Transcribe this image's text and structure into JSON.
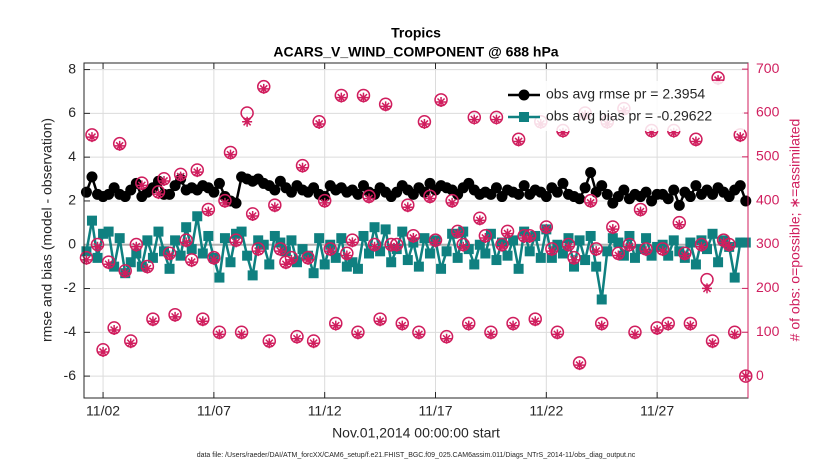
{
  "chart_data": {
    "type": "line",
    "title": "Tropics",
    "subtitle": "ACARS_V_WIND_COMPONENT @ 688 hPa",
    "xlabel": "Nov.01,2014 00:00:00 start",
    "ylabel": "rmse and bias (model - observation)",
    "y2label": "# of obs: o=possible; ∗=assimilated",
    "footnote": "data file: /Users/raeder/DAI/ATM_forcXX/CAM6_setup/f.e21.FHIST_BGC.f09_025.CAM6assim.011/Diags_NTrS_2014-11/obs_diag_output.nc",
    "legend": "upper right",
    "grid": true,
    "xlim": [
      1.14,
      31.1
    ],
    "xticks": [
      {
        "value": 2,
        "label": "11/02"
      },
      {
        "value": 7,
        "label": "11/07"
      },
      {
        "value": 12,
        "label": "11/12"
      },
      {
        "value": 17,
        "label": "11/17"
      },
      {
        "value": 22,
        "label": "11/22"
      },
      {
        "value": 27,
        "label": "11/27"
      }
    ],
    "ylim": [
      -7,
      8.3
    ],
    "yticks": [
      -6,
      -4,
      -2,
      0,
      2,
      4,
      6,
      8
    ],
    "y2lim": [
      -50,
      714
    ],
    "y2ticks": [
      0,
      100,
      200,
      300,
      400,
      500,
      600,
      700
    ],
    "x": [
      1.25,
      1.5,
      1.75,
      2,
      2.25,
      2.5,
      2.75,
      3,
      3.25,
      3.5,
      3.75,
      4,
      4.25,
      4.5,
      4.75,
      5,
      5.25,
      5.5,
      5.75,
      6,
      6.25,
      6.5,
      6.75,
      7,
      7.25,
      7.5,
      7.75,
      8,
      8.25,
      8.5,
      8.75,
      9,
      9.25,
      9.5,
      9.75,
      10,
      10.25,
      10.5,
      10.75,
      11,
      11.25,
      11.5,
      11.75,
      12,
      12.25,
      12.5,
      12.75,
      13,
      13.25,
      13.5,
      13.75,
      14,
      14.25,
      14.5,
      14.75,
      15,
      15.25,
      15.5,
      15.75,
      16,
      16.25,
      16.5,
      16.75,
      17,
      17.25,
      17.5,
      17.75,
      18,
      18.25,
      18.5,
      18.75,
      19,
      19.25,
      19.5,
      19.75,
      20,
      20.25,
      20.5,
      20.75,
      21,
      21.25,
      21.5,
      21.75,
      22,
      22.25,
      22.5,
      22.75,
      23,
      23.25,
      23.5,
      23.75,
      24,
      24.25,
      24.5,
      24.75,
      25,
      25.25,
      25.5,
      25.75,
      26,
      26.25,
      26.5,
      26.75,
      27,
      27.25,
      27.5,
      27.75,
      28,
      28.25,
      28.5,
      28.75,
      29,
      29.25,
      29.5,
      29.75,
      30,
      30.25,
      30.5,
      30.75,
      31
    ],
    "series": [
      {
        "name": "obs avg rmse pr = 2.3954",
        "color": "#000000",
        "marker": "circle",
        "line": true,
        "values": [
          2.4,
          3.1,
          2.3,
          2.2,
          2.3,
          2.6,
          2.3,
          2.2,
          2.5,
          2.8,
          2.2,
          2.4,
          2.6,
          2.9,
          2.3,
          2.3,
          2.7,
          3.0,
          2.5,
          2.6,
          2.5,
          2.7,
          2.6,
          2.4,
          2.8,
          2.2,
          2.0,
          1.9,
          3.1,
          3.0,
          2.9,
          3.0,
          2.8,
          2.7,
          2.5,
          2.9,
          2.6,
          2.4,
          2.7,
          2.5,
          2.4,
          2.6,
          2.3,
          2.2,
          2.7,
          2.5,
          2.6,
          2.4,
          2.5,
          2.3,
          2.7,
          2.4,
          2.3,
          2.6,
          2.4,
          2.2,
          2.4,
          2.7,
          2.5,
          2.3,
          2.6,
          2.4,
          2.8,
          2.5,
          2.7,
          2.6,
          2.5,
          2.3,
          2.6,
          2.8,
          2.5,
          2.3,
          2.4,
          2.3,
          2.6,
          2.2,
          2.5,
          2.4,
          2.3,
          2.7,
          2.3,
          2.5,
          2.4,
          2.2,
          2.6,
          2.4,
          2.8,
          2.3,
          2.2,
          2.1,
          2.6,
          3.3,
          2.4,
          2.7,
          2.3,
          1.9,
          2.2,
          2.5,
          2.1,
          2.3,
          2.2,
          2.4,
          2.0,
          2.3,
          2.3,
          2.1,
          2.5,
          1.8,
          2.4,
          2.2,
          2.7,
          2.3,
          2.5,
          2.3,
          2.6,
          2.4,
          2.2,
          2.5,
          2.7,
          2.0
        ]
      },
      {
        "name": "obs avg bias pr = -0.29622",
        "color": "#0f8080",
        "marker": "square",
        "line": true,
        "values": [
          -0.3,
          1.1,
          -0.6,
          0.5,
          0.6,
          -1.0,
          0.3,
          -1.3,
          -0.8,
          -0.4,
          -1.0,
          0.2,
          -0.6,
          0.6,
          -0.3,
          -1.1,
          0.2,
          -0.5,
          0.8,
          -0.2,
          1.3,
          -0.4,
          0.4,
          -0.6,
          -1.5,
          0.3,
          -0.8,
          0.5,
          0.6,
          -0.5,
          -1.4,
          0.2,
          0.0,
          -0.9,
          0.4,
          0.1,
          -0.3,
          0.2,
          -0.8,
          -0.2,
          -0.5,
          -1.3,
          0.3,
          -0.9,
          0.0,
          -0.6,
          0.3,
          -1.0,
          -0.8,
          -1.1,
          0.4,
          -0.4,
          0.8,
          -0.3,
          0.7,
          -0.8,
          -0.2,
          0.6,
          -0.7,
          0.1,
          -1.0,
          0.3,
          -0.4,
          0.2,
          -1.1,
          -0.3,
          0.5,
          -0.6,
          0.6,
          -0.2,
          -0.9,
          0.0,
          -0.4,
          0.5,
          -0.7,
          0.1,
          -0.5,
          0.2,
          -1.1,
          0.6,
          -0.3,
          0.4,
          -0.6,
          0.7,
          -0.6,
          0.0,
          -0.4,
          0.3,
          -1.0,
          0.2,
          -0.7,
          0.4,
          -1.0,
          -2.5,
          -0.3,
          0.3,
          0.1,
          -0.5,
          0.4,
          -0.6,
          -0.2,
          0.3,
          -0.5,
          -0.1,
          0.0,
          -0.5,
          0.2,
          -0.3,
          -0.6,
          0.1,
          -0.9,
          0.2,
          -0.2,
          0.5,
          -0.8,
          0.2,
          -0.1,
          -1.5,
          0.1,
          0.1
        ]
      },
      {
        "name": "obs possible",
        "color": "#d01e5e",
        "marker": "ocircle",
        "line": false,
        "axis": "y2",
        "values": [
          270,
          550,
          300,
          60,
          260,
          110,
          530,
          240,
          80,
          300,
          440,
          250,
          130,
          420,
          450,
          280,
          140,
          460,
          310,
          265,
          470,
          130,
          380,
          270,
          100,
          400,
          510,
          310,
          100,
          600,
          370,
          290,
          660,
          80,
          390,
          290,
          260,
          270,
          90,
          480,
          270,
          80,
          580,
          400,
          290,
          120,
          640,
          280,
          310,
          100,
          640,
          410,
          300,
          130,
          620,
          300,
          300,
          120,
          390,
          320,
          100,
          580,
          410,
          310,
          630,
          90,
          400,
          330,
          300,
          120,
          590,
          360,
          320,
          100,
          590,
          300,
          330,
          120,
          540,
          320,
          320,
          130,
          580,
          340,
          290,
          100,
          560,
          300,
          270,
          30,
          600,
          400,
          290,
          120,
          580,
          340,
          280,
          610,
          300,
          100,
          380,
          290,
          560,
          110,
          290,
          120,
          560,
          350,
          280,
          120,
          540,
          300,
          220,
          80,
          680,
          310,
          300,
          100,
          550,
          0
        ]
      },
      {
        "name": "obs assimilated",
        "color": "#d01e5e",
        "marker": "asterisk",
        "line": false,
        "axis": "y2",
        "values": [
          265,
          545,
          295,
          55,
          255,
          105,
          525,
          235,
          75,
          295,
          435,
          245,
          125,
          415,
          445,
          275,
          135,
          455,
          305,
          260,
          465,
          125,
          375,
          265,
          95,
          395,
          505,
          305,
          95,
          580,
          365,
          285,
          655,
          75,
          385,
          285,
          255,
          265,
          85,
          475,
          265,
          75,
          575,
          395,
          285,
          115,
          635,
          275,
          305,
          95,
          635,
          405,
          295,
          125,
          615,
          295,
          295,
          115,
          385,
          315,
          95,
          575,
          405,
          305,
          625,
          85,
          395,
          325,
          295,
          115,
          585,
          355,
          315,
          95,
          585,
          295,
          325,
          115,
          535,
          315,
          315,
          125,
          575,
          335,
          285,
          95,
          555,
          295,
          265,
          25,
          595,
          395,
          285,
          115,
          575,
          335,
          275,
          605,
          295,
          95,
          375,
          285,
          555,
          105,
          285,
          115,
          555,
          345,
          275,
          115,
          535,
          295,
          200,
          75,
          675,
          305,
          295,
          95,
          545,
          0
        ]
      }
    ]
  }
}
